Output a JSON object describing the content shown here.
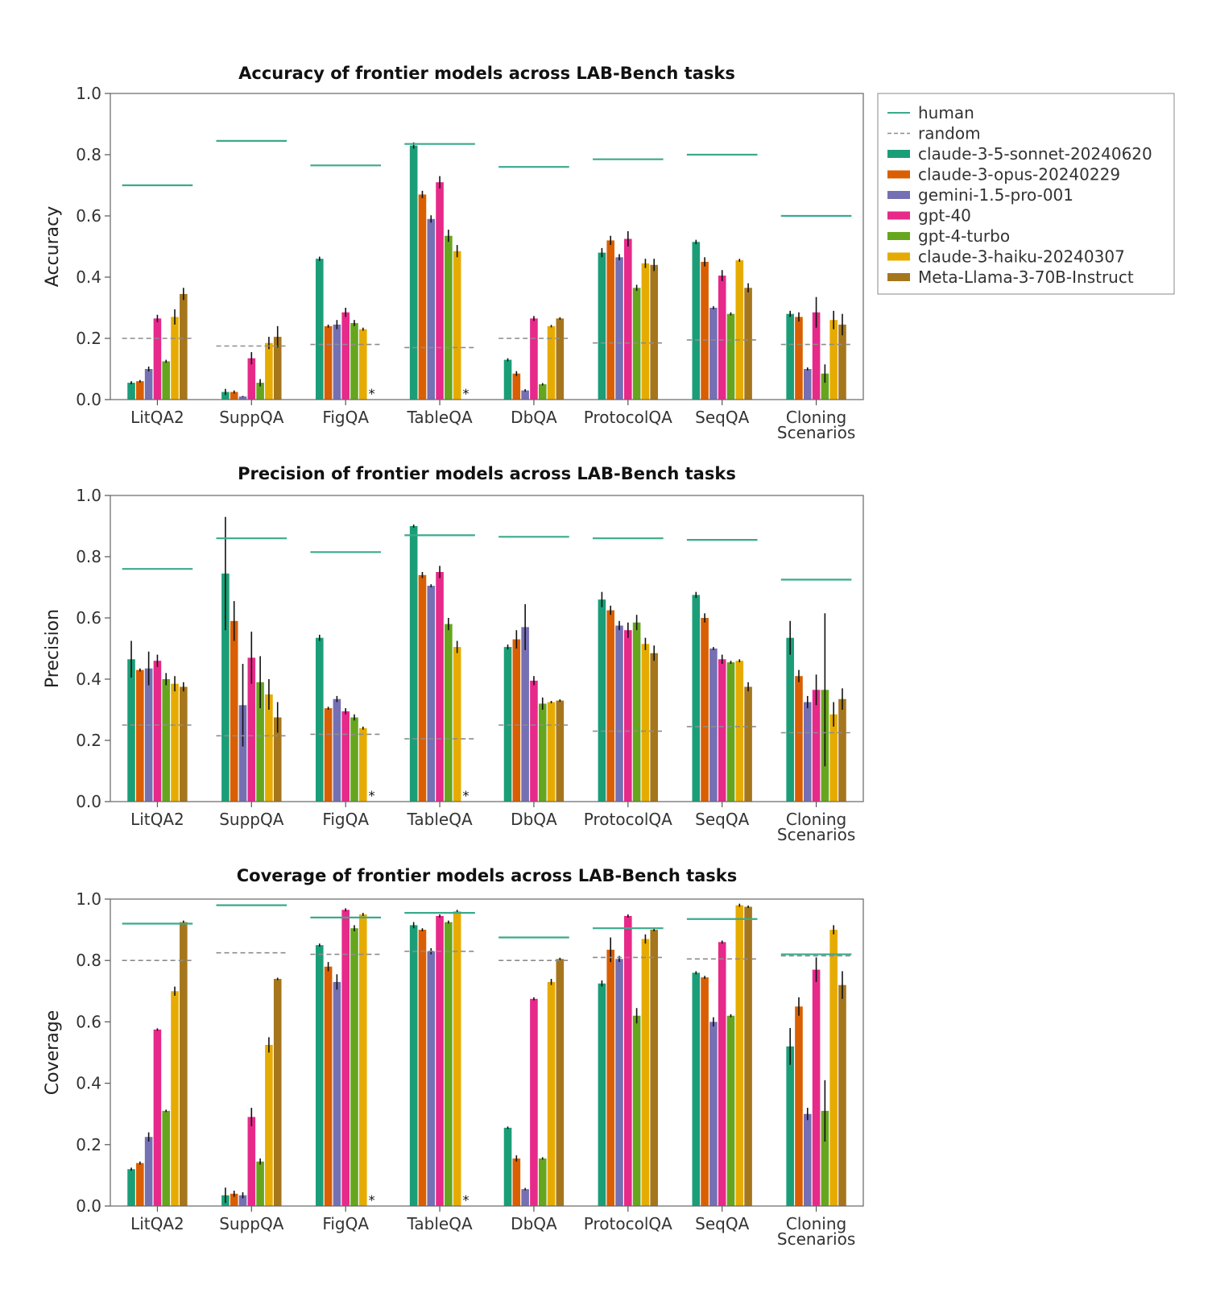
{
  "chart_data": [
    {
      "type": "bar",
      "title": "Accuracy of frontier models across LAB-Bench tasks",
      "ylabel": "Accuracy",
      "xlabel": "",
      "ylim": [
        0,
        1.0
      ],
      "yticks": [
        "0.0",
        "0.2",
        "0.4",
        "0.6",
        "0.8",
        "1.0"
      ],
      "categories": [
        "LitQA2",
        "SuppQA",
        "FigQA",
        "TableQA",
        "DbQA",
        "ProtocolQA",
        "SeqQA",
        "Cloning\nScenarios"
      ],
      "series": [
        {
          "name": "claude-3-5-sonnet-20240620",
          "values": [
            0.055,
            0.025,
            0.46,
            0.83,
            0.13,
            0.48,
            0.515,
            0.28
          ],
          "errors": [
            0.005,
            0.01,
            0.007,
            0.01,
            0.005,
            0.015,
            0.007,
            0.01
          ]
        },
        {
          "name": "claude-3-opus-20240229",
          "values": [
            0.06,
            0.025,
            0.24,
            0.67,
            0.085,
            0.52,
            0.45,
            0.27
          ],
          "errors": [
            0.004,
            0.005,
            0.005,
            0.012,
            0.008,
            0.015,
            0.015,
            0.015
          ]
        },
        {
          "name": "gemini-1.5-pro-001",
          "values": [
            0.1,
            0.01,
            0.245,
            0.59,
            0.03,
            0.465,
            0.3,
            0.1
          ],
          "errors": [
            0.008,
            0.002,
            0.015,
            0.012,
            0.004,
            0.01,
            0.005,
            0.005
          ]
        },
        {
          "name": "gpt-40",
          "values": [
            0.265,
            0.135,
            0.285,
            0.71,
            0.265,
            0.525,
            0.405,
            0.285
          ],
          "errors": [
            0.012,
            0.02,
            0.015,
            0.02,
            0.008,
            0.025,
            0.018,
            0.05
          ]
        },
        {
          "name": "gpt-4-turbo",
          "values": [
            0.125,
            0.055,
            0.25,
            0.535,
            0.05,
            0.365,
            0.28,
            0.085
          ],
          "errors": [
            0.005,
            0.012,
            0.01,
            0.02,
            0.004,
            0.01,
            0.005,
            0.03
          ]
        },
        {
          "name": "claude-3-haiku-20240307",
          "values": [
            0.27,
            0.185,
            0.23,
            0.485,
            0.24,
            0.445,
            0.455,
            0.26
          ],
          "errors": [
            0.025,
            0.02,
            0.005,
            0.02,
            0.004,
            0.015,
            0.005,
            0.03
          ]
        },
        {
          "name": "Meta-Llama-3-70B-Instruct",
          "values": [
            0.345,
            0.205,
            null,
            null,
            0.265,
            0.44,
            0.365,
            0.245
          ],
          "errors": [
            0.02,
            0.035,
            0,
            0,
            0.004,
            0.02,
            0.015,
            0.035
          ]
        }
      ],
      "missing_marker": "*",
      "human": [
        0.7,
        0.845,
        0.765,
        0.835,
        0.76,
        0.785,
        0.8,
        0.6
      ],
      "random": [
        0.2,
        0.175,
        0.18,
        0.17,
        0.2,
        0.185,
        0.195,
        0.18
      ]
    },
    {
      "type": "bar",
      "title": "Precision of frontier models across LAB-Bench tasks",
      "ylabel": "Precision",
      "xlabel": "",
      "ylim": [
        0,
        1.0
      ],
      "yticks": [
        "0.0",
        "0.2",
        "0.4",
        "0.6",
        "0.8",
        "1.0"
      ],
      "categories": [
        "LitQA2",
        "SuppQA",
        "FigQA",
        "TableQA",
        "DbQA",
        "ProtocolQA",
        "SeqQA",
        "Cloning\nScenarios"
      ],
      "series": [
        {
          "name": "claude-3-5-sonnet-20240620",
          "values": [
            0.465,
            0.745,
            0.535,
            0.9,
            0.505,
            0.66,
            0.675,
            0.535
          ],
          "errors": [
            0.06,
            0.185,
            0.01,
            0.005,
            0.008,
            0.025,
            0.01,
            0.055
          ]
        },
        {
          "name": "claude-3-opus-20240229",
          "values": [
            0.43,
            0.59,
            0.305,
            0.74,
            0.53,
            0.625,
            0.6,
            0.41
          ],
          "errors": [
            0.005,
            0.065,
            0.005,
            0.01,
            0.03,
            0.015,
            0.015,
            0.02
          ]
        },
        {
          "name": "gemini-1.5-pro-001",
          "values": [
            0.435,
            0.315,
            0.335,
            0.705,
            0.57,
            0.575,
            0.5,
            0.325
          ],
          "errors": [
            0.055,
            0.135,
            0.01,
            0.005,
            0.075,
            0.015,
            0.005,
            0.02
          ]
        },
        {
          "name": "gpt-40",
          "values": [
            0.46,
            0.47,
            0.295,
            0.75,
            0.395,
            0.56,
            0.465,
            0.365
          ],
          "errors": [
            0.02,
            0.085,
            0.01,
            0.02,
            0.015,
            0.025,
            0.015,
            0.05
          ]
        },
        {
          "name": "gpt-4-turbo",
          "values": [
            0.4,
            0.39,
            0.275,
            0.58,
            0.32,
            0.585,
            0.455,
            0.365
          ],
          "errors": [
            0.02,
            0.085,
            0.01,
            0.02,
            0.02,
            0.025,
            0.005,
            0.25
          ]
        },
        {
          "name": "claude-3-haiku-20240307",
          "values": [
            0.385,
            0.35,
            0.24,
            0.505,
            0.325,
            0.515,
            0.46,
            0.285
          ],
          "errors": [
            0.025,
            0.05,
            0.005,
            0.02,
            0.004,
            0.02,
            0.005,
            0.04
          ]
        },
        {
          "name": "Meta-Llama-3-70B-Instruct",
          "values": [
            0.375,
            0.275,
            null,
            null,
            0.33,
            0.485,
            0.375,
            0.335
          ],
          "errors": [
            0.015,
            0.05,
            0,
            0,
            0.004,
            0.025,
            0.015,
            0.035
          ]
        }
      ],
      "missing_marker": "*",
      "human": [
        0.76,
        0.86,
        0.815,
        0.87,
        0.865,
        0.86,
        0.855,
        0.725
      ],
      "random": [
        0.25,
        0.215,
        0.22,
        0.205,
        0.25,
        0.23,
        0.245,
        0.225
      ]
    },
    {
      "type": "bar",
      "title": "Coverage of frontier models across LAB-Bench tasks",
      "ylabel": "Coverage",
      "xlabel": "",
      "ylim": [
        0,
        1.0
      ],
      "yticks": [
        "0.0",
        "0.2",
        "0.4",
        "0.6",
        "0.8",
        "1.0"
      ],
      "categories": [
        "LitQA2",
        "SuppQA",
        "FigQA",
        "TableQA",
        "DbQA",
        "ProtocolQA",
        "SeqQA",
        "Cloning\nScenarios"
      ],
      "series": [
        {
          "name": "claude-3-5-sonnet-20240620",
          "values": [
            0.12,
            0.035,
            0.85,
            0.915,
            0.255,
            0.725,
            0.76,
            0.52
          ],
          "errors": [
            0.005,
            0.025,
            0.005,
            0.01,
            0.004,
            0.01,
            0.005,
            0.06
          ]
        },
        {
          "name": "claude-3-opus-20240229",
          "values": [
            0.14,
            0.04,
            0.78,
            0.9,
            0.155,
            0.835,
            0.745,
            0.65
          ],
          "errors": [
            0.005,
            0.01,
            0.015,
            0.005,
            0.01,
            0.04,
            0.005,
            0.03
          ]
        },
        {
          "name": "gemini-1.5-pro-001",
          "values": [
            0.225,
            0.035,
            0.73,
            0.83,
            0.055,
            0.805,
            0.6,
            0.3
          ],
          "errors": [
            0.015,
            0.01,
            0.025,
            0.01,
            0.004,
            0.01,
            0.015,
            0.02
          ]
        },
        {
          "name": "gpt-40",
          "values": [
            0.575,
            0.29,
            0.965,
            0.945,
            0.675,
            0.945,
            0.86,
            0.77
          ],
          "errors": [
            0.004,
            0.03,
            0.005,
            0.005,
            0.005,
            0.005,
            0.005,
            0.04
          ]
        },
        {
          "name": "gpt-4-turbo",
          "values": [
            0.31,
            0.145,
            0.905,
            0.925,
            0.155,
            0.62,
            0.62,
            0.31
          ],
          "errors": [
            0.004,
            0.01,
            0.01,
            0.005,
            0.004,
            0.025,
            0.005,
            0.1
          ]
        },
        {
          "name": "claude-3-haiku-20240307",
          "values": [
            0.7,
            0.525,
            0.95,
            0.96,
            0.73,
            0.87,
            0.98,
            0.9
          ],
          "errors": [
            0.015,
            0.025,
            0.005,
            0.005,
            0.01,
            0.015,
            0.005,
            0.015
          ]
        },
        {
          "name": "Meta-Llama-3-70B-Instruct",
          "values": [
            0.925,
            0.74,
            null,
            null,
            0.805,
            0.9,
            0.975,
            0.72
          ],
          "errors": [
            0.005,
            0.004,
            0,
            0,
            0.004,
            0.005,
            0.004,
            0.045
          ]
        }
      ],
      "missing_marker": "*",
      "human": [
        0.92,
        0.98,
        0.94,
        0.955,
        0.875,
        0.905,
        0.935,
        0.82
      ],
      "random": [
        0.8,
        0.825,
        0.82,
        0.83,
        0.8,
        0.81,
        0.805,
        0.815
      ]
    }
  ],
  "legend": {
    "placement": "top-right",
    "entries": [
      {
        "label": "human",
        "kind": "solid-line",
        "color": "#3aaa8c"
      },
      {
        "label": "random",
        "kind": "dashed-line",
        "color": "#8c8c8c"
      },
      {
        "label": "claude-3-5-sonnet-20240620",
        "kind": "patch",
        "color": "#1b9e77"
      },
      {
        "label": "claude-3-opus-20240229",
        "kind": "patch",
        "color": "#d95f02"
      },
      {
        "label": "gemini-1.5-pro-001",
        "kind": "patch",
        "color": "#7570b3"
      },
      {
        "label": "gpt-40",
        "kind": "patch",
        "color": "#e7298a"
      },
      {
        "label": "gpt-4-turbo",
        "kind": "patch",
        "color": "#66a61e"
      },
      {
        "label": "claude-3-haiku-20240307",
        "kind": "patch",
        "color": "#e6ab02"
      },
      {
        "label": "Meta-Llama-3-70B-Instruct",
        "kind": "patch",
        "color": "#a6761d"
      }
    ]
  },
  "colors": {
    "series": [
      "#1b9e77",
      "#d95f02",
      "#7570b3",
      "#e7298a",
      "#66a61e",
      "#e6ab02",
      "#a6761d"
    ],
    "human": "#3aaa8c",
    "random": "#8c8c8c",
    "axis": "#555555"
  }
}
